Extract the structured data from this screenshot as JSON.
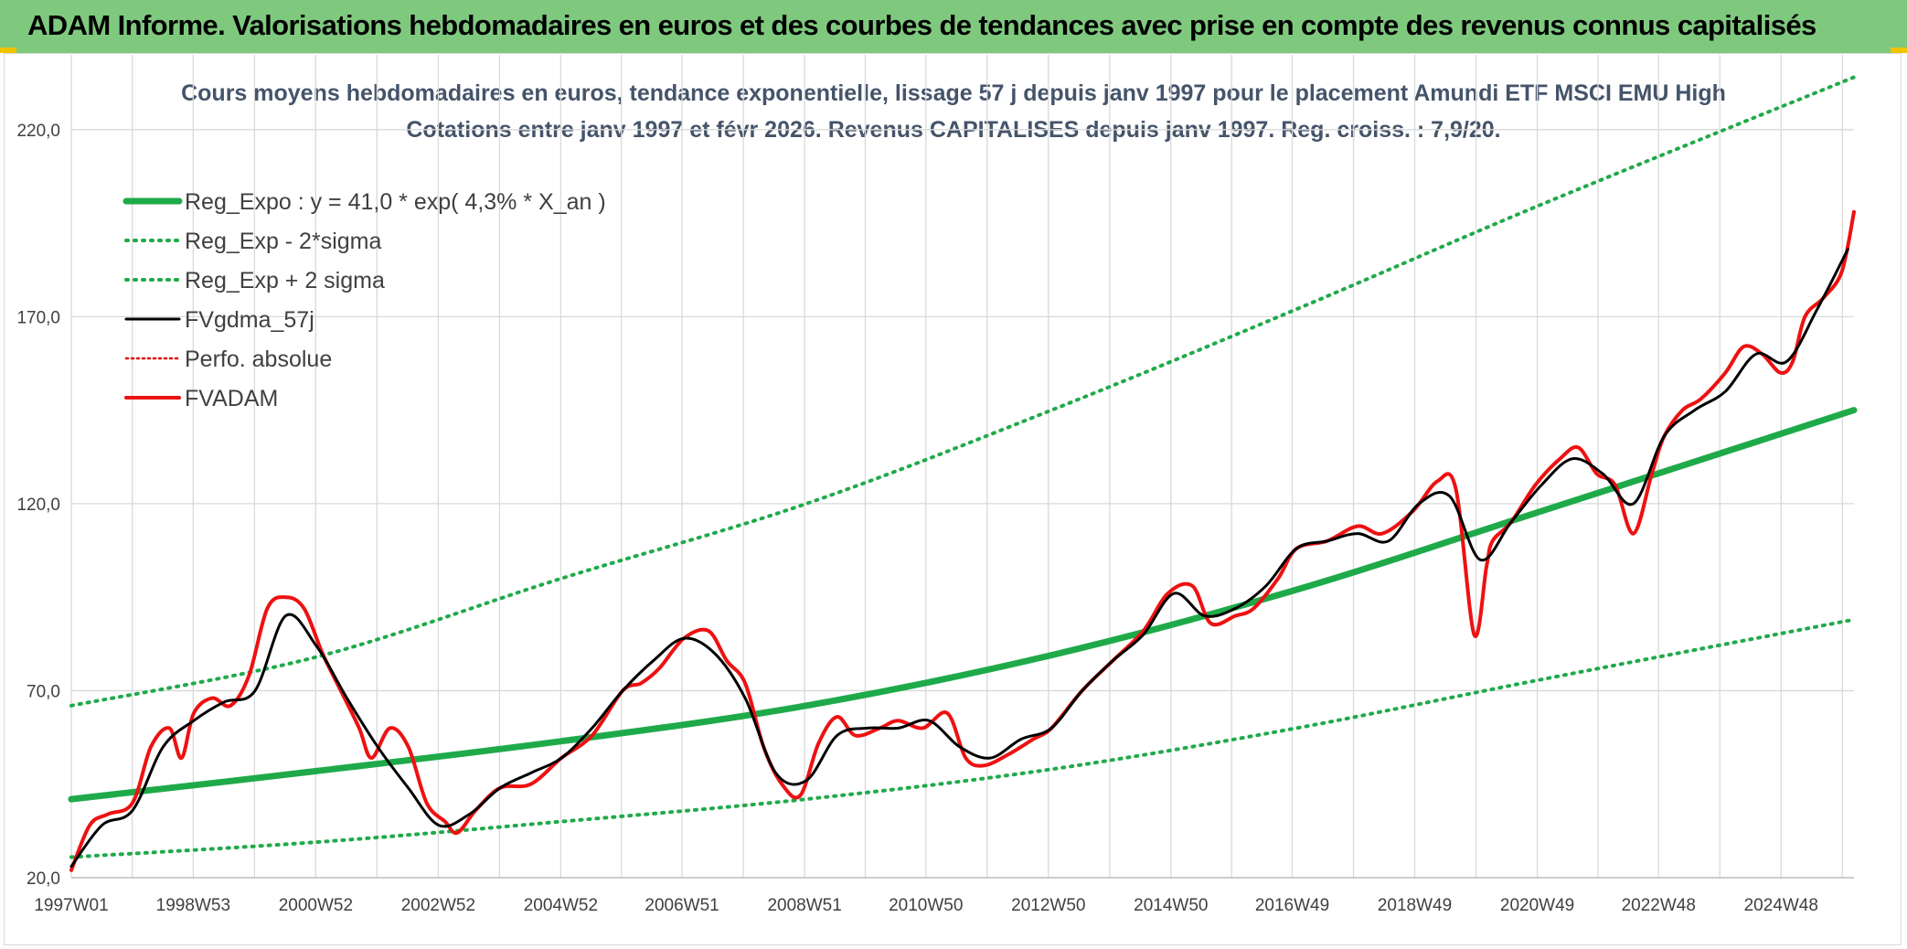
{
  "header": {
    "title": "ADAM Informe. Valorisations hebdomadaires en euros et des courbes de tendances avec prise en compte des revenus connus capitalisés"
  },
  "colors": {
    "banner": "#7fc97f",
    "trend": "#1faa4a",
    "band": "#1faa4a",
    "smooth": "#000000",
    "perf": "#e00000",
    "fvadam": "#ee1111",
    "grid": "#d9d9d9"
  },
  "chart_data": {
    "type": "line",
    "title": "Cours moyens hebdomadaires en euros, tendance exponentielle, lissage 57 j depuis janv 1997 pour le placement Amundi ETF MSCI EMU High",
    "subtitle": "Cotations entre janv 1997 et févr 2026. Revenus CAPITALISES depuis janv 1997. Reg. croiss. : 7,9/20.",
    "x_range": [
      1997.0,
      2026.1
    ],
    "ylim": [
      20,
      240
    ],
    "y_ticks": [
      20,
      70,
      120,
      170,
      220
    ],
    "y_tick_labels": [
      "20,0",
      "70,0",
      "120,0",
      "170,0",
      "220,0"
    ],
    "x_ticks": [
      {
        "label": "1997W01",
        "year": 1997.0
      },
      {
        "label": "1998W53",
        "year": 1998.99
      },
      {
        "label": "2000W52",
        "year": 2000.99
      },
      {
        "label": "2002W52",
        "year": 2002.99
      },
      {
        "label": "2004W52",
        "year": 2004.99
      },
      {
        "label": "2006W51",
        "year": 2006.97
      },
      {
        "label": "2008W51",
        "year": 2008.97
      },
      {
        "label": "2010W50",
        "year": 2010.95
      },
      {
        "label": "2012W50",
        "year": 2012.95
      },
      {
        "label": "2014W50",
        "year": 2014.95
      },
      {
        "label": "2016W49",
        "year": 2016.93
      },
      {
        "label": "2018W49",
        "year": 2018.93
      },
      {
        "label": "2020W49",
        "year": 2020.93
      },
      {
        "label": "2022W48",
        "year": 2022.91
      },
      {
        "label": "2024W48",
        "year": 2024.91
      }
    ],
    "legend": [
      {
        "key": "trend",
        "label": "Reg_Expo : y = 41,0 * exp( 4,3% *  X_an )",
        "style": "solid-thick"
      },
      {
        "key": "lower",
        "label": "Reg_Exp - 2*sigma",
        "style": "dotted"
      },
      {
        "key": "upper",
        "label": "Reg_Exp + 2 sigma",
        "style": "dotted"
      },
      {
        "key": "smooth",
        "label": "FVgdma_57j",
        "style": "solid"
      },
      {
        "key": "perf",
        "label": "Perfo. absolue",
        "style": "dotted-thin"
      },
      {
        "key": "fvadam",
        "label": "FVADAM",
        "style": "solid-thick"
      }
    ],
    "series": [
      {
        "name": "Reg_Expo",
        "key": "trend",
        "x": [
          1997.0,
          2001.0,
          2005.0,
          2009.0,
          2013.0,
          2017.0,
          2021.0,
          2026.1
        ],
        "values": [
          41,
          48.5,
          56.5,
          66,
          79.5,
          97,
          118,
          145
        ]
      },
      {
        "name": "Reg_Exp - 2*sigma",
        "key": "lower",
        "x": [
          1997.0,
          2001.0,
          2005.0,
          2009.0,
          2013.0,
          2017.0,
          2021.0,
          2026.1
        ],
        "values": [
          25.5,
          29.5,
          35,
          41,
          49,
          60,
          73,
          89
        ]
      },
      {
        "name": "Reg_Exp + 2 sigma",
        "key": "upper",
        "x": [
          1997.0,
          2001.0,
          2005.0,
          2009.0,
          2013.0,
          2017.0,
          2021.0,
          2026.1
        ],
        "values": [
          66,
          79,
          100,
          120,
          145,
          172,
          200,
          234
        ]
      },
      {
        "name": "FVgdma_57j",
        "key": "smooth",
        "x": [
          1997.0,
          1997.5,
          1998.0,
          1998.5,
          1999.0,
          1999.5,
          2000.0,
          2000.5,
          2001.0,
          2001.5,
          2002.0,
          2002.5,
          2003.0,
          2003.5,
          2004.0,
          2004.5,
          2005.0,
          2005.5,
          2006.0,
          2006.5,
          2007.0,
          2007.5,
          2008.0,
          2008.5,
          2009.0,
          2009.5,
          2010.0,
          2010.5,
          2011.0,
          2011.5,
          2012.0,
          2012.5,
          2013.0,
          2013.5,
          2014.0,
          2014.5,
          2015.0,
          2015.5,
          2016.0,
          2016.5,
          2017.0,
          2017.5,
          2018.0,
          2018.5,
          2019.0,
          2019.5,
          2020.0,
          2020.5,
          2021.0,
          2021.5,
          2022.0,
          2022.5,
          2023.0,
          2023.5,
          2024.0,
          2024.5,
          2025.0,
          2025.5,
          2026.0
        ],
        "values": [
          23,
          34,
          38,
          55,
          62,
          67,
          70,
          90,
          82,
          68,
          55,
          44,
          34,
          37,
          44,
          48,
          52,
          60,
          70,
          78,
          84,
          80,
          68,
          48,
          46,
          58,
          60,
          60,
          62,
          55,
          52,
          57,
          60,
          70,
          78,
          85,
          96,
          90,
          92,
          98,
          108,
          110,
          112,
          110,
          120,
          122,
          105,
          115,
          125,
          132,
          128,
          120,
          138,
          145,
          150,
          160,
          158,
          172,
          188
        ]
      },
      {
        "name": "FVADAM",
        "key": "fvadam",
        "x": [
          1997.0,
          1997.3,
          1997.6,
          1998.0,
          1998.3,
          1998.6,
          1998.8,
          1999.0,
          1999.3,
          1999.6,
          1999.9,
          2000.2,
          2000.5,
          2000.8,
          2001.1,
          2001.4,
          2001.7,
          2001.9,
          2002.2,
          2002.5,
          2002.8,
          2003.1,
          2003.3,
          2003.6,
          2004.0,
          2004.5,
          2005.0,
          2005.5,
          2006.0,
          2006.3,
          2006.6,
          2007.0,
          2007.4,
          2007.7,
          2008.0,
          2008.3,
          2008.6,
          2008.9,
          2009.2,
          2009.5,
          2009.8,
          2010.2,
          2010.5,
          2010.9,
          2011.3,
          2011.6,
          2011.9,
          2012.3,
          2012.7,
          2013.0,
          2013.5,
          2014.0,
          2014.5,
          2014.9,
          2015.3,
          2015.6,
          2016.0,
          2016.3,
          2016.7,
          2017.0,
          2017.5,
          2018.0,
          2018.4,
          2018.9,
          2019.3,
          2019.6,
          2019.9,
          2020.1,
          2020.2,
          2020.5,
          2020.9,
          2021.3,
          2021.6,
          2021.9,
          2022.2,
          2022.5,
          2022.8,
          2023.0,
          2023.3,
          2023.6,
          2024.0,
          2024.3,
          2024.6,
          2024.9,
          2025.1,
          2025.3,
          2025.6,
          2025.9,
          2026.1
        ],
        "values": [
          22,
          34,
          37,
          40,
          55,
          60,
          52,
          64,
          68,
          66,
          74,
          92,
          95,
          92,
          80,
          70,
          60,
          52,
          60,
          55,
          40,
          35,
          32,
          38,
          44,
          45,
          52,
          58,
          70,
          72,
          76,
          84,
          86,
          78,
          72,
          55,
          45,
          42,
          56,
          63,
          58,
          60,
          62,
          60,
          64,
          52,
          50,
          53,
          57,
          60,
          70,
          78,
          86,
          96,
          98,
          88,
          90,
          92,
          100,
          108,
          110,
          114,
          112,
          118,
          126,
          124,
          85,
          103,
          110,
          115,
          125,
          132,
          135,
          128,
          125,
          112,
          128,
          138,
          145,
          148,
          155,
          162,
          160,
          155,
          158,
          170,
          175,
          182,
          198
        ]
      }
    ]
  }
}
